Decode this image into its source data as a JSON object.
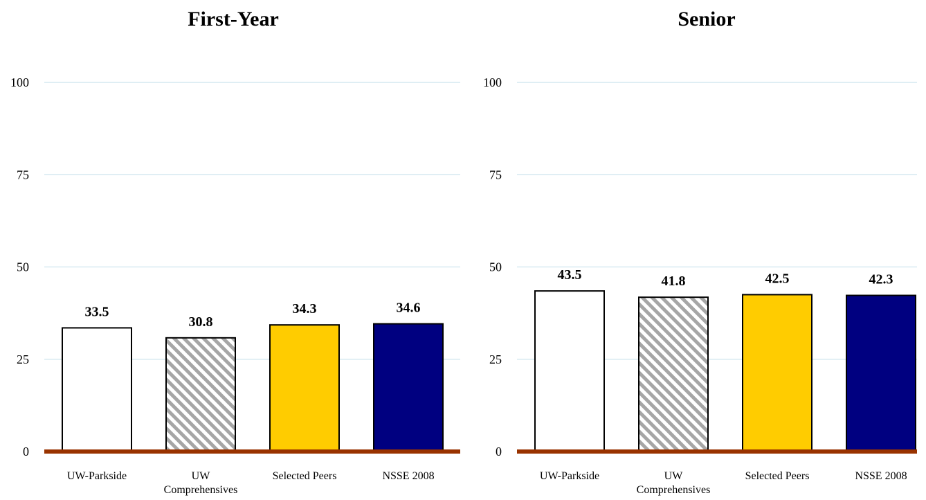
{
  "chart_data": [
    {
      "type": "bar",
      "title": "First-Year",
      "categories": [
        "UW-Parkside",
        "UW Comprehensives",
        "Selected Peers",
        "NSSE 2008"
      ],
      "values": [
        33.5,
        30.8,
        34.3,
        34.6
      ],
      "value_labels": [
        "33.5",
        "30.8",
        "34.3",
        "34.6"
      ],
      "yticks": [
        "0",
        "25",
        "50",
        "75",
        "100"
      ],
      "ylim": [
        0,
        100
      ],
      "grid": true,
      "bar_fills": [
        "#ffffff",
        "hatch",
        "#ffcc00",
        "#000080"
      ]
    },
    {
      "type": "bar",
      "title": "Senior",
      "categories": [
        "UW-Parkside",
        "UW Comprehensives",
        "Selected Peers",
        "NSSE 2008"
      ],
      "values": [
        43.5,
        41.8,
        42.5,
        42.3
      ],
      "value_labels": [
        "43.5",
        "41.8",
        "42.5",
        "42.3"
      ],
      "yticks": [
        "0",
        "25",
        "50",
        "75",
        "100"
      ],
      "ylim": [
        0,
        100
      ],
      "grid": true,
      "bar_fills": [
        "#ffffff",
        "hatch",
        "#ffcc00",
        "#000080"
      ]
    }
  ],
  "colors": {
    "gridline": "#bfdde8",
    "baseline": "#993300",
    "hatch_stripe": "#a6a6a6",
    "bar_outline": "#000000"
  }
}
